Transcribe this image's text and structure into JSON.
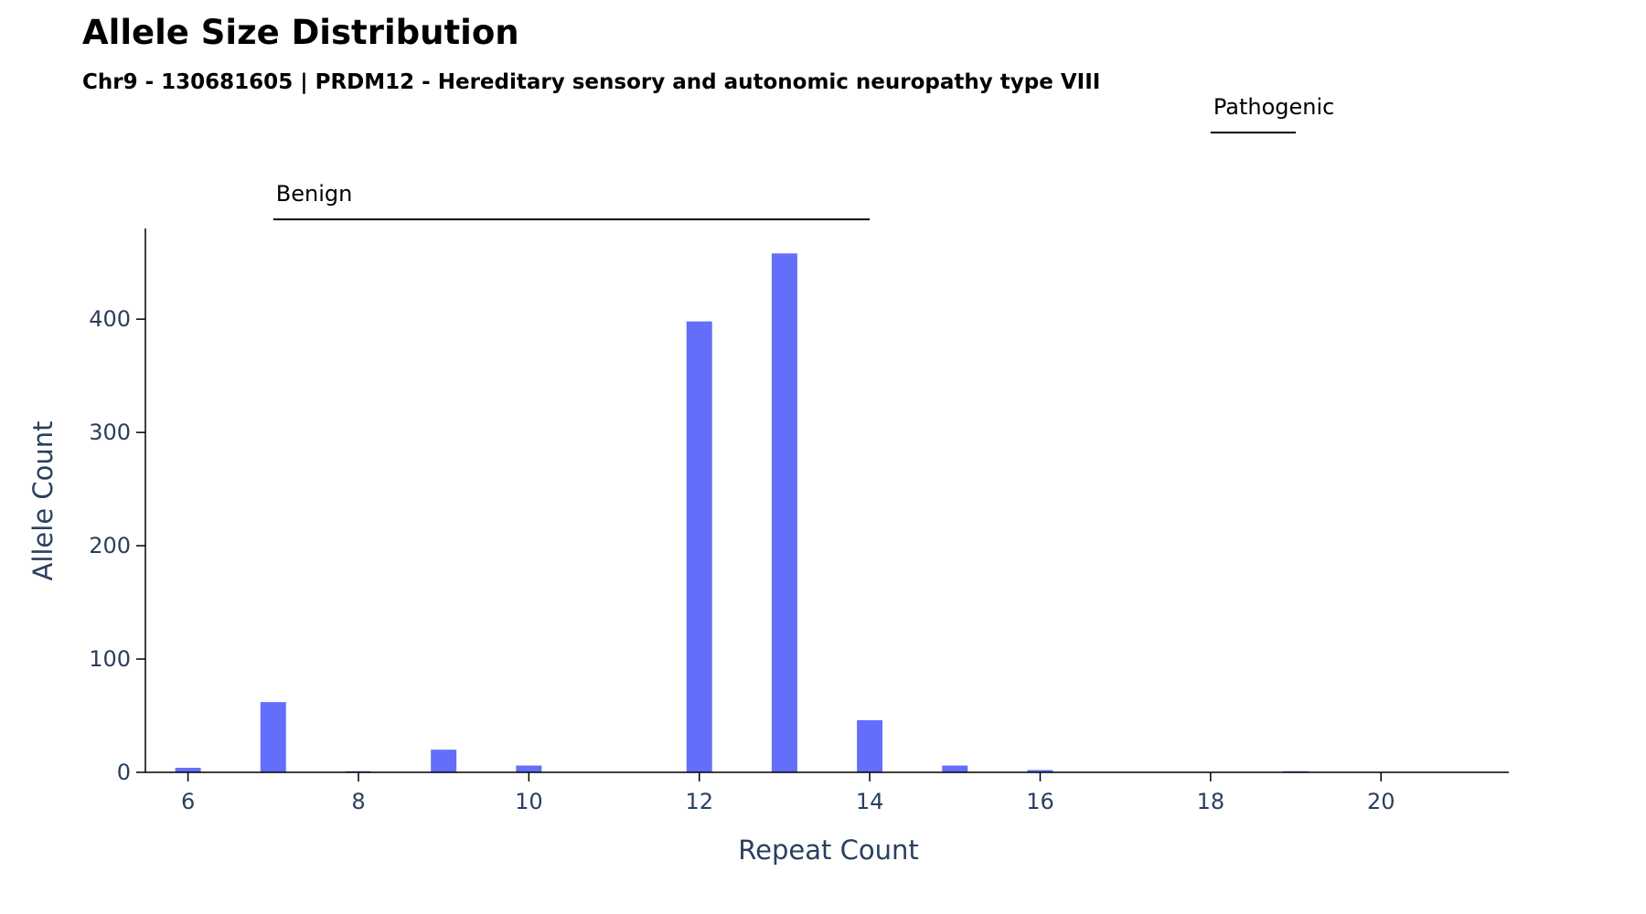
{
  "chart_data": {
    "type": "bar",
    "title": "Allele Size Distribution",
    "subtitle": "Chr9 - 130681605 | PRDM12 - Hereditary sensory and autonomic neuropathy type VIII",
    "xlabel": "Repeat Count",
    "ylabel": "Allele Count",
    "xlim": [
      5.5,
      21.5
    ],
    "ylim": [
      0,
      480
    ],
    "xticks": [
      6,
      8,
      10,
      12,
      14,
      16,
      18,
      20
    ],
    "yticks": [
      0,
      100,
      200,
      300,
      400
    ],
    "grid": false,
    "bar_color": "#636efa",
    "x": [
      6,
      7,
      8,
      9,
      10,
      12,
      13,
      14,
      15,
      16,
      19
    ],
    "values": [
      4,
      62,
      1,
      20,
      6,
      398,
      458,
      46,
      6,
      2,
      1
    ],
    "ranges": [
      {
        "label": "Benign",
        "start": 7,
        "end": 14
      },
      {
        "label": "Pathogenic",
        "start": 18,
        "end": 19
      }
    ]
  }
}
